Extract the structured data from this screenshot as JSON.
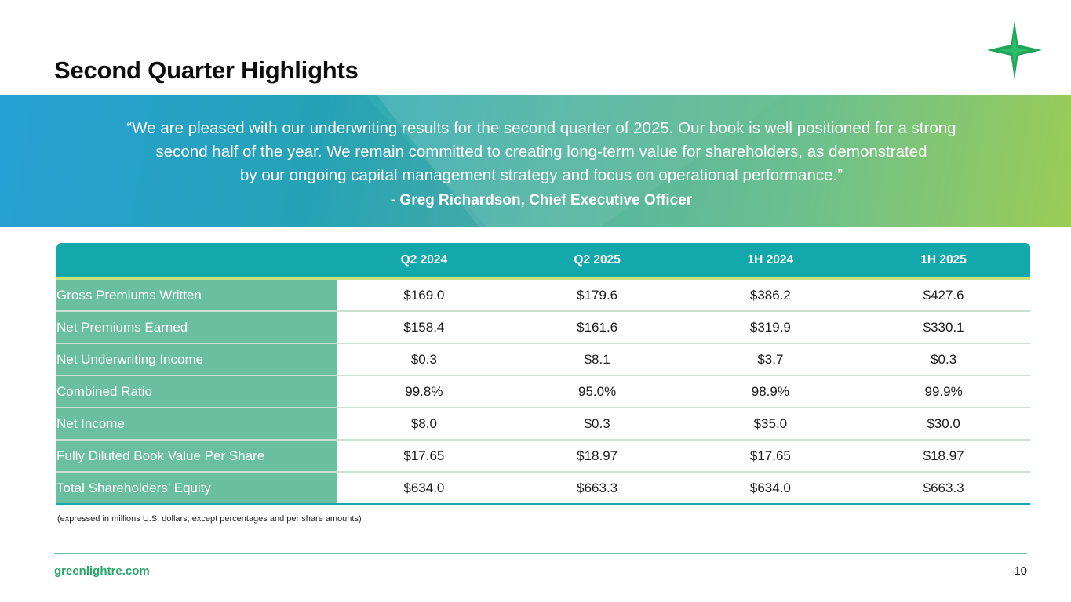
{
  "header": {
    "title": "Second Quarter Highlights",
    "logo_icon": "green-star-icon"
  },
  "banner": {
    "quote_lines": [
      "“We are pleased with our underwriting results for the second quarter of 2025. Our book is well positioned for a strong",
      "second half of the year. We remain committed to creating long-term value for shareholders, as demonstrated",
      "by our ongoing capital management strategy and focus on operational performance.”"
    ],
    "attribution": "- Greg Richardson, Chief Executive Officer"
  },
  "table": {
    "columns": [
      "",
      "Q2 2024",
      "Q2 2025",
      "1H 2024",
      "1H 2025"
    ],
    "rows": [
      {
        "label": "Gross Premiums Written",
        "values": [
          "$169.0",
          "$179.6",
          "$386.2",
          "$427.6"
        ]
      },
      {
        "label": "Net Premiums Earned",
        "values": [
          "$158.4",
          "$161.6",
          "$319.9",
          "$330.1"
        ]
      },
      {
        "label": "Net Underwriting Income",
        "values": [
          "$0.3",
          "$8.1",
          "$3.7",
          "$0.3"
        ]
      },
      {
        "label": "Combined Ratio",
        "values": [
          "99.8%",
          "95.0%",
          "98.9%",
          "99.9%"
        ]
      },
      {
        "label": "Net Income",
        "values": [
          "$8.0",
          "$0.3",
          "$35.0",
          "$30.0"
        ]
      },
      {
        "label": "Fully Diluted Book Value Per Share",
        "values": [
          "$17.65",
          "$18.97",
          "$17.65",
          "$18.97"
        ]
      },
      {
        "label": "Total Shareholders’ Equity",
        "values": [
          "$634.0",
          "$663.3",
          "$634.0",
          "$663.3"
        ]
      }
    ]
  },
  "note": "(expressed in millions U.S. dollars, except percentages and per share amounts)",
  "footer": {
    "url": "greenlightre.com",
    "page_number": "10"
  },
  "colors": {
    "header_teal": "#13a8ac",
    "label_green": "#6abf9f",
    "accent_lime": "#c7e27a",
    "footer_green": "#2aa56a"
  }
}
